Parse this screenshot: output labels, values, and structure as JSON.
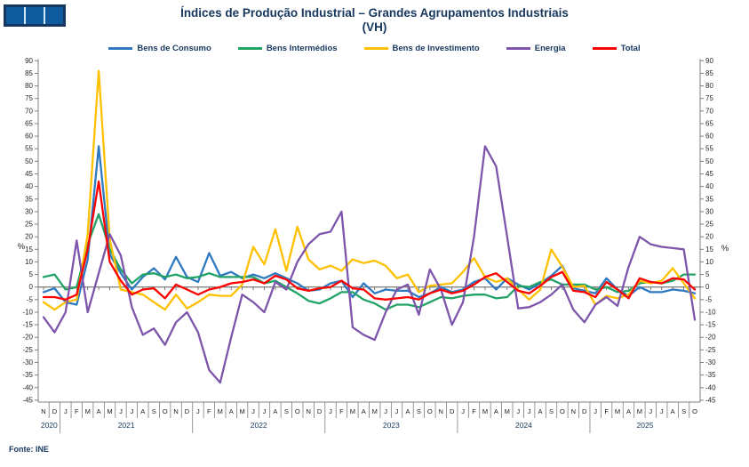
{
  "logo": {
    "alt": "INE logo",
    "frame_color": "#16365F",
    "square_color": "#0E5C9E",
    "gap_color": "#CFE9F6",
    "squares": 3
  },
  "title": {
    "line1": "Índices de Produção Industrial – Grandes Agrupamentos Industriais",
    "line2": "(VH)"
  },
  "footer": {
    "source": "Fonte: INE"
  },
  "chart_data": {
    "type": "line",
    "unit": "%",
    "ylabel_left": "%",
    "ylabel_right": "%",
    "ylim": [
      -45,
      90
    ],
    "ytick_step": 5,
    "grid": false,
    "zero_axis": true,
    "legend_position": "top",
    "x_months": [
      "N",
      "D",
      "J",
      "F",
      "M",
      "A",
      "M",
      "J",
      "J",
      "A",
      "S",
      "O",
      "N",
      "D",
      "J",
      "F",
      "M",
      "A",
      "M",
      "J",
      "J",
      "A",
      "S",
      "O",
      "N",
      "D",
      "J",
      "F",
      "M",
      "A",
      "M",
      "J",
      "J",
      "A",
      "S",
      "O",
      "N",
      "D",
      "J",
      "F",
      "M",
      "A",
      "M",
      "J",
      "J",
      "A",
      "S",
      "O",
      "N",
      "D",
      "J",
      "F",
      "M",
      "A",
      "M",
      "J",
      "J",
      "A",
      "S",
      "O"
    ],
    "year_groups": [
      {
        "label": "2020",
        "from": 0,
        "to": 1
      },
      {
        "label": "2021",
        "from": 2,
        "to": 13
      },
      {
        "label": "2022",
        "from": 14,
        "to": 25
      },
      {
        "label": "2023",
        "from": 26,
        "to": 37
      },
      {
        "label": "2024",
        "from": 38,
        "to": 49
      },
      {
        "label": "2025",
        "from": 50,
        "to": 59
      }
    ],
    "series": [
      {
        "name": "Bens de Consumo",
        "color": "#2E79C0",
        "values": [
          -2,
          -0.5,
          -6,
          -7,
          11,
          56,
          13,
          5.5,
          -1,
          4,
          7.5,
          3,
          12,
          4,
          2,
          13.5,
          4.5,
          6,
          3.5,
          5,
          3.5,
          5.5,
          3.5,
          1.5,
          -1.5,
          -1,
          1.5,
          2.5,
          -4,
          1.5,
          -2.5,
          -1,
          -1.5,
          -1.5,
          -4,
          -2.5,
          0,
          -2,
          -1,
          2,
          3.5,
          -1,
          3.5,
          1,
          -1,
          1.5,
          4.5,
          8.5,
          -0.5,
          -1.5,
          -2.5,
          3.5,
          -1,
          -3.5,
          0,
          -2,
          -2,
          -1,
          -1.5,
          -2.5
        ]
      },
      {
        "name": "Bens Intermédios",
        "color": "#21A366",
        "values": [
          4,
          5,
          -1,
          0,
          17,
          29,
          15,
          7,
          1.5,
          5,
          5.5,
          4,
          5,
          3.5,
          4,
          5.5,
          4,
          4,
          4,
          4,
          1.5,
          2.5,
          0,
          -2.5,
          -5.5,
          -6.5,
          -4.5,
          -2,
          -2,
          -5,
          -6.5,
          -9,
          -7,
          -7,
          -8,
          -6,
          -4,
          -4.5,
          -3.5,
          -3,
          -3,
          -4.5,
          -4,
          0.5,
          0,
          2,
          3,
          1,
          1,
          1,
          -1,
          0,
          -2,
          -1.5,
          1.5,
          2,
          1.5,
          2.5,
          5,
          5
        ]
      },
      {
        "name": "Bens de Investimento",
        "color": "#FFC000",
        "values": [
          -6,
          -9,
          -6,
          -5,
          21,
          86,
          19,
          -1,
          -2,
          -3,
          -6,
          -9,
          -3,
          -8.5,
          -6,
          -3,
          -3.5,
          -3.5,
          1,
          16,
          9,
          23,
          6.5,
          24,
          11,
          7,
          8.5,
          6.5,
          11,
          9.5,
          10.5,
          8.5,
          3.5,
          5,
          -2,
          0.5,
          1,
          1.5,
          6,
          11.5,
          4,
          2,
          3.5,
          -1,
          -5,
          -1,
          15,
          8,
          0,
          0.5,
          -7,
          -3.5,
          -4.5,
          -3,
          2.5,
          1.5,
          2.5,
          7.5,
          1.5,
          -4.5
        ]
      },
      {
        "name": "Energia",
        "color": "#7D55AA",
        "values": [
          -12,
          -18,
          -10,
          18.5,
          -10,
          5.5,
          21,
          12.5,
          -8,
          -19,
          -16.5,
          -23,
          -14,
          -10,
          -18,
          -33,
          -38,
          -20,
          -3,
          -6,
          -10,
          2,
          -1,
          10,
          17,
          21,
          22,
          30,
          -16,
          -19,
          -21,
          -10,
          -1,
          1,
          -11,
          7,
          -1,
          -15,
          -6,
          20,
          56,
          48,
          20,
          -8.5,
          -8,
          -6,
          -3,
          1,
          -9,
          -14,
          -7,
          -4,
          -7.5,
          8,
          20,
          17,
          16,
          15.5,
          15,
          -13
        ]
      },
      {
        "name": "Total",
        "color": "#FF0000",
        "values": [
          -4,
          -4,
          -5,
          -3,
          15,
          42,
          10,
          2.5,
          -3,
          -1,
          -0.5,
          -4.5,
          1,
          -1,
          -3,
          -1,
          0,
          1.5,
          2,
          3,
          1.5,
          4.5,
          3,
          -0.5,
          -1.5,
          -0.5,
          0,
          2.5,
          -0.5,
          -1,
          -4.5,
          -5,
          -4.5,
          -4,
          -5,
          -2.5,
          -1,
          -2.5,
          -1.5,
          1,
          4,
          5.5,
          2,
          -1.5,
          -2.5,
          0.5,
          4,
          6,
          -1.5,
          -2,
          -4,
          2,
          -1,
          -4.5,
          3.5,
          2,
          1.5,
          3.5,
          3,
          -1
        ]
      }
    ]
  }
}
